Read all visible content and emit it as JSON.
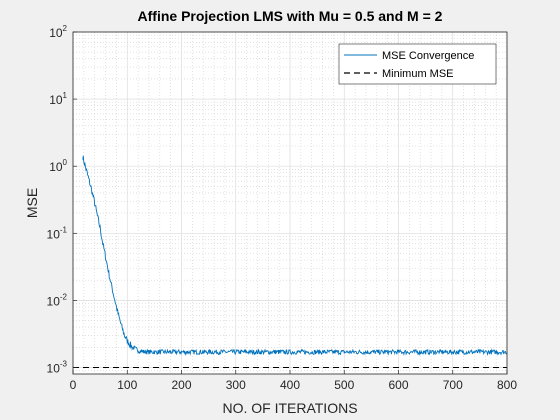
{
  "chart_data": {
    "type": "line",
    "title": "Affine Projection LMS with Mu = 0.5 and M = 2",
    "xlabel": "NO. OF ITERATIONS",
    "ylabel": "MSE",
    "xlim": [
      0,
      800
    ],
    "ylim": [
      0.0008,
      100
    ],
    "yscale": "log",
    "grid": true,
    "minor_grid": true,
    "xticks": [
      0,
      100,
      200,
      300,
      400,
      500,
      600,
      700,
      800
    ],
    "yticks": [
      {
        "value": 0.001,
        "base": "10",
        "exp": "-3"
      },
      {
        "value": 0.01,
        "base": "10",
        "exp": "-2"
      },
      {
        "value": 0.1,
        "base": "10",
        "exp": "-1"
      },
      {
        "value": 1,
        "base": "10",
        "exp": "0"
      },
      {
        "value": 10,
        "base": "10",
        "exp": "1"
      },
      {
        "value": 100,
        "base": "10",
        "exp": "2"
      }
    ],
    "legend_position": "top-right",
    "series": [
      {
        "name": "MSE Convergence",
        "color": "#0072bd",
        "style": "solid",
        "x": [
          18,
          20,
          25,
          30,
          35,
          40,
          45,
          50,
          55,
          60,
          65,
          70,
          75,
          80,
          85,
          90,
          95,
          100,
          105,
          110,
          115,
          120,
          125,
          130,
          140,
          150,
          160,
          180,
          200,
          250,
          300,
          350,
          400,
          450,
          500,
          550,
          600,
          650,
          700,
          750,
          800
        ],
        "y": [
          1.4,
          1.2,
          0.85,
          0.6,
          0.42,
          0.28,
          0.18,
          0.12,
          0.07,
          0.045,
          0.028,
          0.018,
          0.012,
          0.008,
          0.0055,
          0.004,
          0.003,
          0.0025,
          0.0022,
          0.002,
          0.0019,
          0.0018,
          0.00175,
          0.00172,
          0.0017,
          0.0017,
          0.0017,
          0.0017,
          0.0017,
          0.0017,
          0.0017,
          0.0017,
          0.0017,
          0.0017,
          0.0017,
          0.0017,
          0.0017,
          0.0017,
          0.0017,
          0.0017,
          0.0017
        ]
      },
      {
        "name": "Minimum MSE",
        "color": "#000000",
        "style": "dashed",
        "x": [
          0,
          800
        ],
        "y": [
          0.001,
          0.001
        ]
      }
    ]
  }
}
